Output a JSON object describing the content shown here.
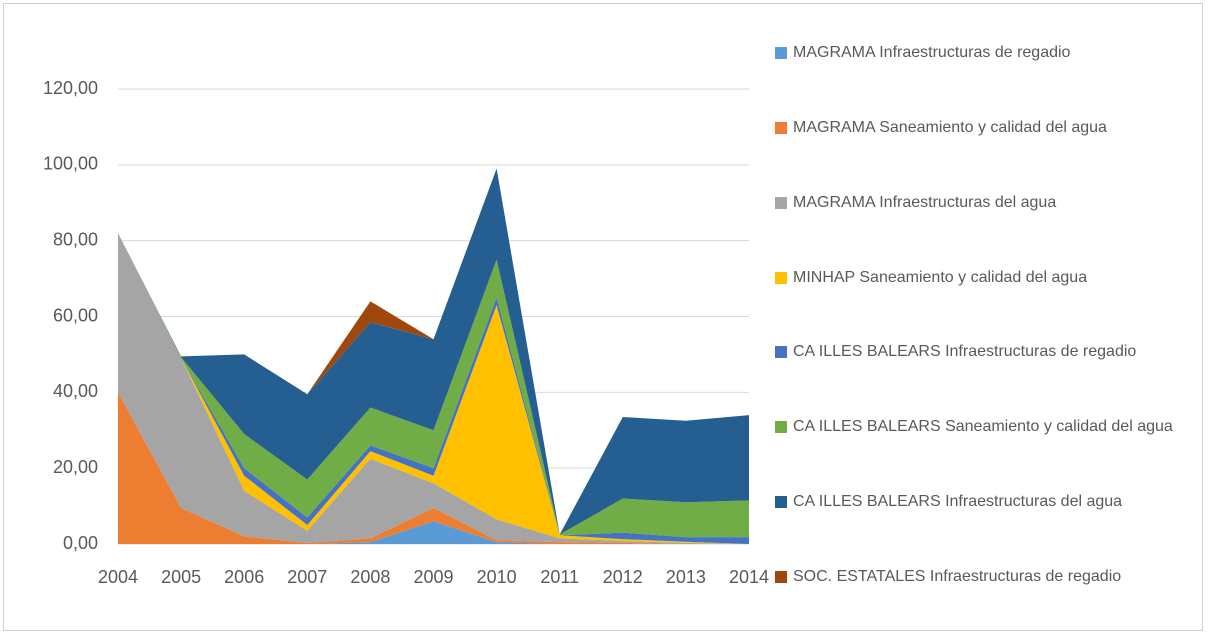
{
  "chart_data": {
    "type": "stacked_area",
    "categories": [
      "2004",
      "2005",
      "2006",
      "2007",
      "2008",
      "2009",
      "2010",
      "2011",
      "2012",
      "2013",
      "2014"
    ],
    "ylim": [
      0,
      120
    ],
    "yticks": [
      {
        "value": 0,
        "label": "0,00"
      },
      {
        "value": 20,
        "label": "20,00"
      },
      {
        "value": 40,
        "label": "40,00"
      },
      {
        "value": 60,
        "label": "60,00"
      },
      {
        "value": 80,
        "label": "80,00"
      },
      {
        "value": 100,
        "label": "100,00"
      },
      {
        "value": 120,
        "label": "120,00"
      }
    ],
    "grid": true,
    "legend": "right",
    "series": [
      {
        "name": "MAGRAMA Infraestructuras de regadio",
        "color": "#5b9bd5",
        "values": [
          0,
          0,
          0,
          0,
          0.5,
          6,
          0.5,
          0,
          0,
          0,
          0
        ]
      },
      {
        "name": "MAGRAMA Saneamiento y calidad del agua",
        "color": "#ed7d31",
        "values": [
          40,
          9.5,
          2,
          0.3,
          1,
          3.5,
          0.5,
          0.5,
          0.3,
          0,
          0
        ]
      },
      {
        "name": "MAGRAMA Infraestructuras del agua",
        "color": "#a5a5a5",
        "values": [
          42,
          39.5,
          12,
          3.2,
          21,
          6.5,
          5.5,
          1,
          0.5,
          0.3,
          0
        ]
      },
      {
        "name": "MINHAP Saneamiento y calidad del agua",
        "color": "#ffc000",
        "values": [
          0,
          0,
          4,
          1.5,
          2,
          2,
          56.5,
          0.8,
          0.5,
          0.3,
          0
        ]
      },
      {
        "name": "CA ILLES BALEARS Infraestructuras de regadio",
        "color": "#4472c4",
        "values": [
          0,
          0,
          2,
          2,
          1.5,
          2,
          2,
          0,
          1.7,
          1.2,
          1.8
        ]
      },
      {
        "name": "CA ILLES BALEARS Saneamiento y calidad del agua",
        "color": "#70ad47",
        "values": [
          0,
          0.3,
          9,
          10,
          10,
          10,
          10,
          0.2,
          9,
          9.2,
          9.7
        ]
      },
      {
        "name": "CA ILLES BALEARS Infraestructuras del agua",
        "color": "#255e91",
        "values": [
          0,
          0.2,
          21,
          22.5,
          22.5,
          24,
          24,
          0,
          21.5,
          21.5,
          22.5
        ]
      },
      {
        "name": "SOC. ESTATALES Infraestructuras de regadio",
        "color": "#9e480e",
        "values": [
          0,
          0,
          0,
          0,
          5.5,
          0,
          0,
          0,
          0,
          0,
          0
        ]
      }
    ]
  }
}
